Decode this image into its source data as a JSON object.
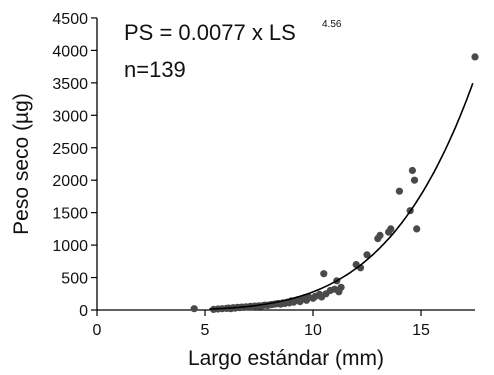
{
  "chart_data": {
    "type": "scatter",
    "title": "",
    "xlabel": "Largo estándar (mm)",
    "ylabel": "Peso seco (µg)",
    "xlim": [
      0,
      18
    ],
    "ylim": [
      0,
      4500
    ],
    "x_ticks": [
      0,
      5,
      10,
      15
    ],
    "y_ticks": [
      0,
      500,
      1000,
      1500,
      2000,
      2500,
      3000,
      3500,
      4000,
      4500
    ],
    "grid": false,
    "legend": "none",
    "annotations": {
      "equation": "PS = 0.0077 x LS",
      "exponent": "4.56",
      "n": "n=139"
    },
    "fit": {
      "a": 0.0077,
      "b": 4.56,
      "x_range": [
        5.2,
        17.4
      ]
    },
    "points": [
      [
        4.5,
        20
      ],
      [
        5.4,
        10
      ],
      [
        5.6,
        15
      ],
      [
        5.8,
        20
      ],
      [
        6.0,
        25
      ],
      [
        6.1,
        30
      ],
      [
        6.2,
        20
      ],
      [
        6.3,
        35
      ],
      [
        6.4,
        30
      ],
      [
        6.5,
        40
      ],
      [
        6.6,
        35
      ],
      [
        6.7,
        45
      ],
      [
        6.8,
        40
      ],
      [
        6.9,
        50
      ],
      [
        7.0,
        45
      ],
      [
        7.1,
        55
      ],
      [
        7.2,
        50
      ],
      [
        7.3,
        60
      ],
      [
        7.4,
        55
      ],
      [
        7.5,
        65
      ],
      [
        7.6,
        60
      ],
      [
        7.7,
        70
      ],
      [
        7.8,
        75
      ],
      [
        7.9,
        70
      ],
      [
        8.0,
        80
      ],
      [
        8.1,
        85
      ],
      [
        8.2,
        90
      ],
      [
        8.3,
        95
      ],
      [
        8.4,
        100
      ],
      [
        8.5,
        90
      ],
      [
        8.6,
        110
      ],
      [
        8.7,
        100
      ],
      [
        8.8,
        120
      ],
      [
        8.9,
        110
      ],
      [
        9.0,
        140
      ],
      [
        9.1,
        120
      ],
      [
        9.2,
        150
      ],
      [
        9.3,
        160
      ],
      [
        9.4,
        130
      ],
      [
        9.5,
        170
      ],
      [
        9.6,
        190
      ],
      [
        9.7,
        150
      ],
      [
        9.8,
        200
      ],
      [
        10.0,
        180
      ],
      [
        10.1,
        210
      ],
      [
        10.3,
        240
      ],
      [
        10.4,
        200
      ],
      [
        10.5,
        560
      ],
      [
        10.6,
        250
      ],
      [
        10.8,
        300
      ],
      [
        11.0,
        320
      ],
      [
        11.1,
        450
      ],
      [
        11.2,
        280
      ],
      [
        11.3,
        350
      ],
      [
        12.0,
        700
      ],
      [
        12.2,
        650
      ],
      [
        12.5,
        850
      ],
      [
        13.0,
        1100
      ],
      [
        13.1,
        1150
      ],
      [
        13.5,
        1200
      ],
      [
        13.6,
        1250
      ],
      [
        14.0,
        1830
      ],
      [
        14.5,
        1530
      ],
      [
        14.6,
        2150
      ],
      [
        14.7,
        2000
      ],
      [
        14.8,
        1250
      ],
      [
        17.5,
        3900
      ]
    ]
  }
}
